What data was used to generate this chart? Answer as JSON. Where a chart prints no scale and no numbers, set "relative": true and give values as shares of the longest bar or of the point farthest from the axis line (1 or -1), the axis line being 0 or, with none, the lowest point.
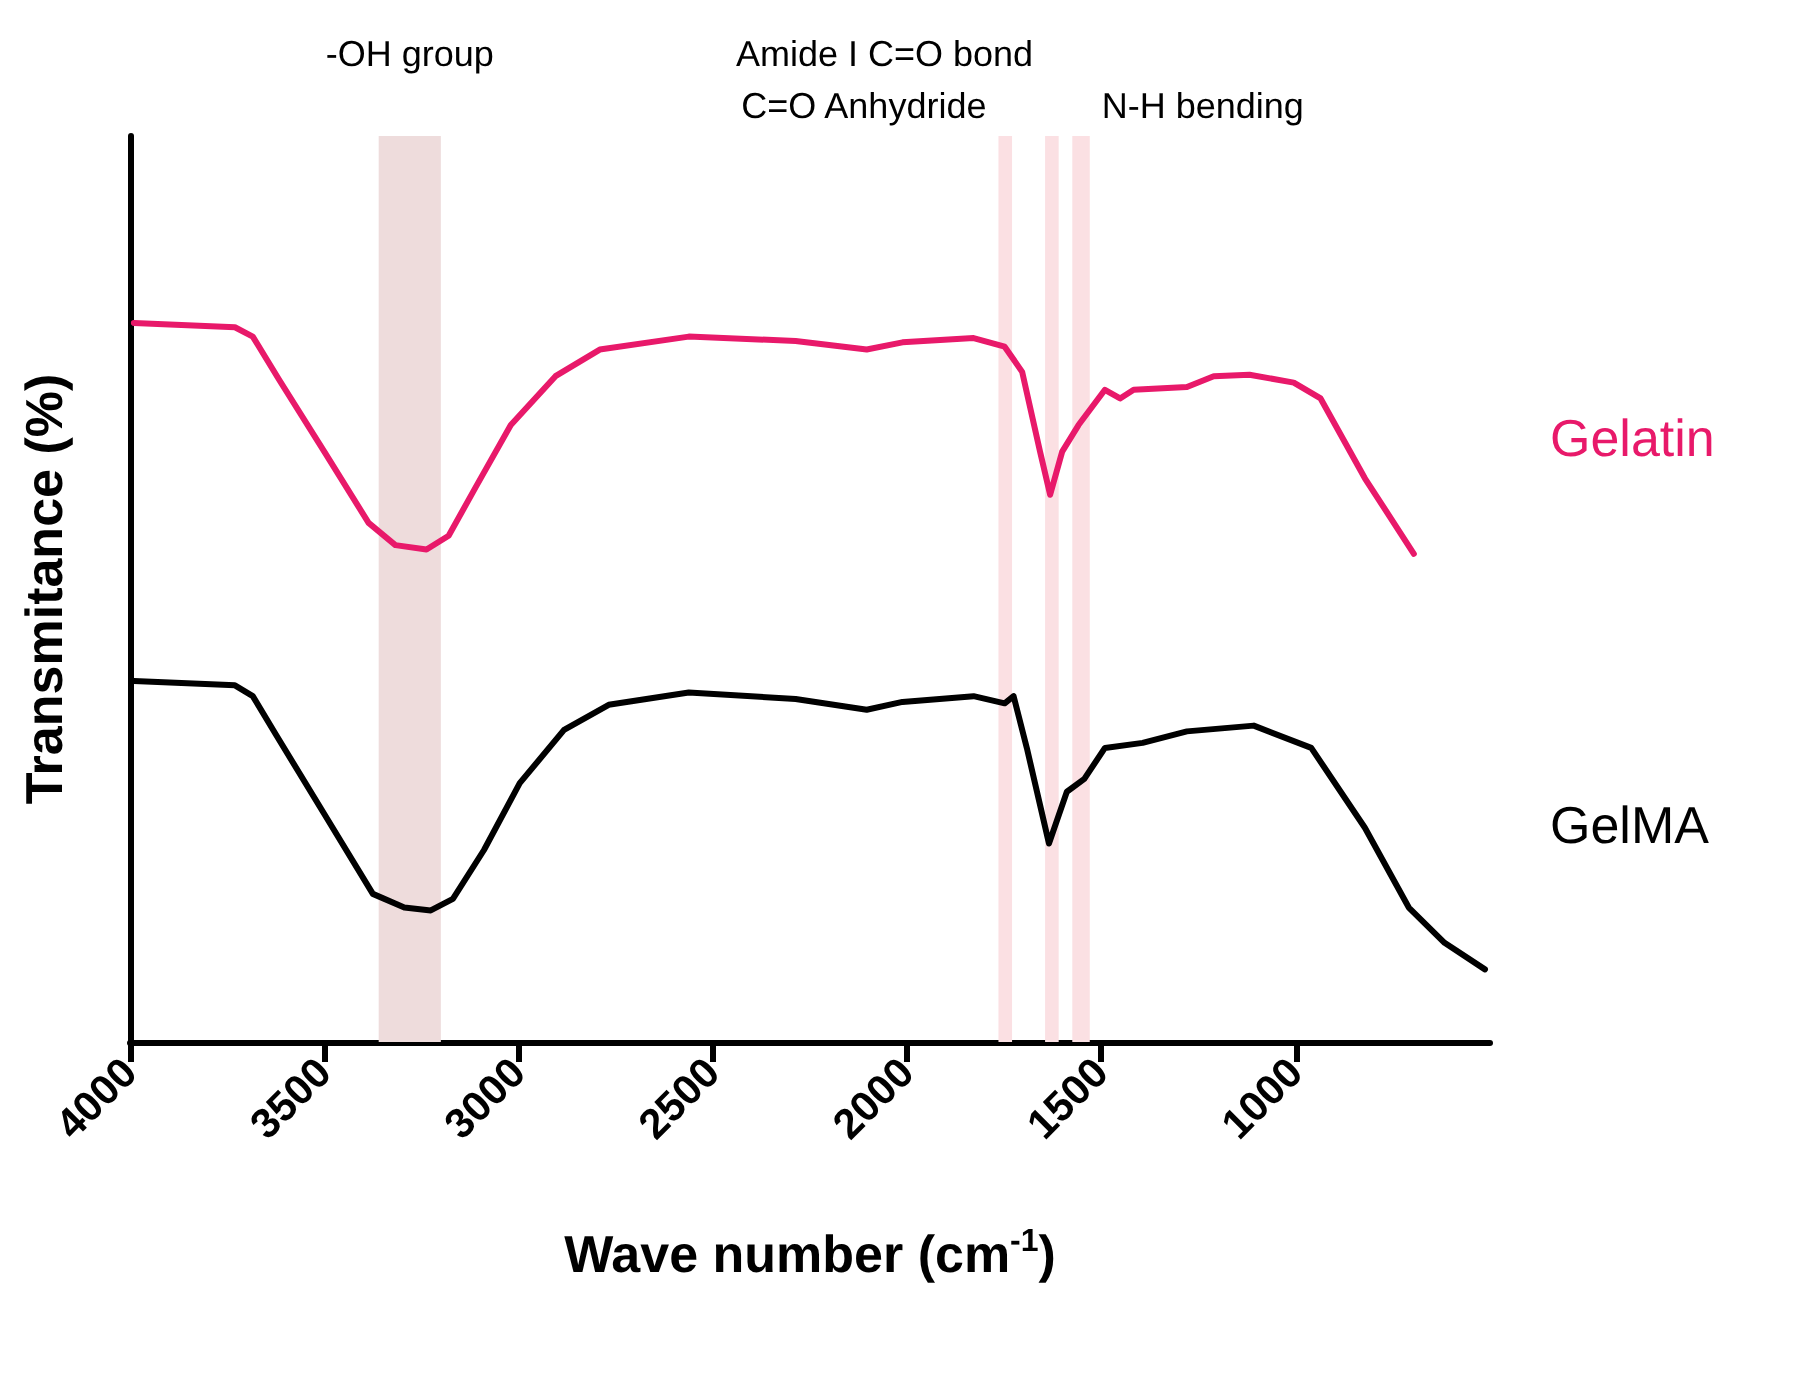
{
  "chart_data": {
    "type": "line",
    "xlabel": "Wave number (cm$^{-1}$)",
    "ylabel": "Transmitance (%)",
    "relative": true,
    "xlim": [
      4000,
      500
    ],
    "xticks": [
      4000,
      3500,
      3000,
      2500,
      2000,
      1500,
      1000
    ],
    "series": [
      {
        "name": "Gelatin",
        "color": "#e8196a",
        "x": [
          3990,
          3730,
          3684,
          3615,
          3500,
          3386,
          3317,
          3237,
          3180,
          3111,
          3020,
          2905,
          2791,
          2562,
          2287,
          2104,
          2012,
          1829,
          1749,
          1704,
          1658,
          1632,
          1601,
          1559,
          1491,
          1452,
          1417,
          1280,
          1211,
          1119,
          1005,
          936,
          822,
          696
        ],
        "values": [
          1.0,
          0.994,
          0.981,
          0.92,
          0.821,
          0.722,
          0.691,
          0.685,
          0.704,
          0.771,
          0.858,
          0.926,
          0.963,
          0.981,
          0.975,
          0.963,
          0.973,
          0.979,
          0.967,
          0.932,
          0.821,
          0.761,
          0.821,
          0.858,
          0.907,
          0.895,
          0.907,
          0.911,
          0.926,
          0.928,
          0.917,
          0.895,
          0.784,
          0.679
        ]
      },
      {
        "name": "GelMA",
        "color": "#000000",
        "x": [
          3990,
          3730,
          3684,
          3625,
          3500,
          3375,
          3294,
          3226,
          3169,
          3089,
          2997,
          2883,
          2768,
          2562,
          2287,
          2104,
          2012,
          1829,
          1749,
          1726,
          1692,
          1635,
          1589,
          1544,
          1491,
          1394,
          1280,
          1108,
          960,
          822,
          709,
          617,
          513
        ],
        "values": [
          0.502,
          0.496,
          0.481,
          0.428,
          0.317,
          0.206,
          0.187,
          0.183,
          0.199,
          0.267,
          0.36,
          0.434,
          0.469,
          0.486,
          0.477,
          0.462,
          0.473,
          0.481,
          0.471,
          0.481,
          0.409,
          0.276,
          0.348,
          0.366,
          0.409,
          0.416,
          0.432,
          0.44,
          0.409,
          0.298,
          0.187,
          0.138,
          0.101
        ]
      }
    ],
    "bands": [
      {
        "axis": "x",
        "from": 3360,
        "to": 3200,
        "label": "-OH group",
        "color": "#eedcdc"
      },
      {
        "axis": "x",
        "from": 1765,
        "to": 1730,
        "label": "C=O Anhydride",
        "color": "#fbe0e3"
      },
      {
        "axis": "x",
        "from": 1645,
        "to": 1610,
        "label": "Amide I C=O bond",
        "color": "#fbe0e3"
      },
      {
        "axis": "x",
        "from": 1575,
        "to": 1530,
        "label": "N-H bending",
        "color": "#fbe0e3"
      }
    ]
  }
}
